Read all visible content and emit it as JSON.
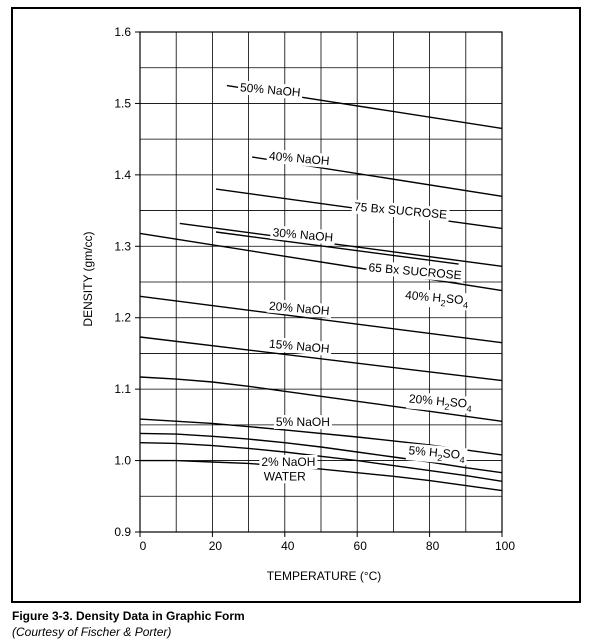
{
  "chart_data": {
    "type": "line",
    "xlabel": "TEMPERATURE (°C)",
    "ylabel": "DENSITY (gm/cc)",
    "xlim": [
      0,
      100
    ],
    "ylim": [
      0.9,
      1.6
    ],
    "xticks": [
      "0",
      "20",
      "40",
      "60",
      "80",
      "100"
    ],
    "yticks": [
      "0.9",
      "1.0",
      "1.1",
      "1.2",
      "1.3",
      "1.4",
      "1.5",
      "1.6"
    ],
    "grid": true,
    "series": [
      {
        "name": "50% NaOH",
        "x": [
          24,
          100
        ],
        "y": [
          1.525,
          1.465
        ]
      },
      {
        "name": "40% NaOH",
        "x": [
          31,
          100
        ],
        "y": [
          1.425,
          1.37
        ]
      },
      {
        "name": "75 Bx SUCROSE",
        "x": [
          21,
          100
        ],
        "y": [
          1.38,
          1.325
        ]
      },
      {
        "name": "30% NaOH",
        "x": [
          11,
          100
        ],
        "y": [
          1.332,
          1.272
        ]
      },
      {
        "name": "65 Bx SUCROSE",
        "x": [
          21,
          88
        ],
        "y": [
          1.32,
          1.275
        ]
      },
      {
        "name": "40% H2SO4",
        "x": [
          0,
          100
        ],
        "y": [
          1.318,
          1.238
        ]
      },
      {
        "name": "20% NaOH",
        "x": [
          0,
          100
        ],
        "y": [
          1.23,
          1.165
        ]
      },
      {
        "name": "15% NaOH",
        "x": [
          0,
          100
        ],
        "y": [
          1.173,
          1.112
        ]
      },
      {
        "name": "20% H2SO4",
        "x": [
          0,
          10,
          20,
          30,
          40,
          50,
          60,
          70,
          80,
          90,
          100
        ],
        "y": [
          1.117,
          1.114,
          1.11,
          1.104,
          1.097,
          1.09,
          1.083,
          1.076,
          1.069,
          1.062,
          1.055
        ]
      },
      {
        "name": "5% NaOH",
        "x": [
          0,
          20,
          40,
          60,
          80,
          100
        ],
        "y": [
          1.058,
          1.052,
          1.043,
          1.033,
          1.022,
          1.008
        ]
      },
      {
        "name": "5% H2SO4",
        "x": [
          0,
          10,
          20,
          30,
          40,
          50,
          60,
          70,
          80,
          90,
          100
        ],
        "y": [
          1.038,
          1.037,
          1.034,
          1.03,
          1.025,
          1.019,
          1.012,
          1.005,
          0.998,
          0.99,
          0.983
        ]
      },
      {
        "name": "2% NaOH",
        "x": [
          0,
          10,
          20,
          30,
          40,
          50,
          60,
          70,
          80,
          90,
          100
        ],
        "y": [
          1.025,
          1.024,
          1.021,
          1.017,
          1.012,
          1.006,
          1.0,
          0.993,
          0.986,
          0.979,
          0.971
        ]
      },
      {
        "name": "WATER",
        "x": [
          0,
          10,
          20,
          30,
          40,
          50,
          60,
          70,
          80,
          90,
          100
        ],
        "y": [
          1.0,
          1.0,
          0.998,
          0.996,
          0.992,
          0.988,
          0.983,
          0.978,
          0.972,
          0.965,
          0.958
        ]
      }
    ],
    "annotations": [
      {
        "label": "50% NaOH",
        "x": 36,
        "y": 1.519,
        "rotate": 5
      },
      {
        "label": "40% NaOH",
        "x": 44,
        "y": 1.423,
        "rotate": 5
      },
      {
        "label": "75 Bx SUCROSE",
        "x": 72,
        "y": 1.35,
        "rotate": 5
      },
      {
        "label": "30% NaOH",
        "x": 45,
        "y": 1.316,
        "rotate": 5
      },
      {
        "label": "65 Bx SUCROSE",
        "x": 76,
        "y": 1.265,
        "rotate": 5
      },
      {
        "label": "40% H2SO4",
        "x": 82,
        "y": 1.228,
        "rotate": 5
      },
      {
        "label": "20% NaOH",
        "x": 44,
        "y": 1.213,
        "rotate": 5
      },
      {
        "label": "15% NaOH",
        "x": 44,
        "y": 1.16,
        "rotate": 5
      },
      {
        "label": "20% H2SO4",
        "x": 83,
        "y": 1.083,
        "rotate": 5
      },
      {
        "label": "5% NaOH",
        "x": 45,
        "y": 1.054,
        "rotate": 0
      },
      {
        "label": "5% H2SO4",
        "x": 82,
        "y": 1.011,
        "rotate": 5
      },
      {
        "label": "2% NaOH",
        "x": 41,
        "y": 0.998,
        "rotate": 0
      },
      {
        "label": "WATER",
        "x": 40,
        "y": 0.978,
        "rotate": 0
      }
    ]
  },
  "caption": {
    "title": "Figure 3-3. Density Data in Graphic Form",
    "subtitle": "(Courtesy of Fischer & Porter)"
  }
}
